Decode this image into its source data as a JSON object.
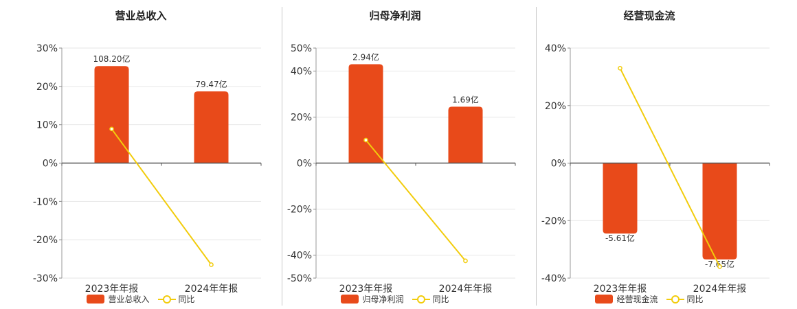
{
  "colors": {
    "bar": "#E84A1A",
    "line": "#F2CC0C"
  },
  "chart_data": [
    {
      "type": "bar",
      "title": "营业总收入",
      "categories": [
        "2023年年报",
        "2024年年报"
      ],
      "series": [
        {
          "name": "营业总收入",
          "kind": "bar",
          "values": [
            25.3,
            18.7
          ],
          "labels": [
            "108.20亿",
            "79.47亿"
          ]
        },
        {
          "name": "同比",
          "kind": "line",
          "values": [
            8.9,
            -26.5
          ]
        }
      ],
      "ylim": [
        -30,
        30
      ],
      "yticks": [
        30,
        20,
        10,
        0,
        -10,
        -20,
        -30
      ],
      "ytick_labels": [
        "30%",
        "20%",
        "10%",
        "0%",
        "-10%",
        "-20%",
        "-30%"
      ],
      "grid": true,
      "legend": "bottom"
    },
    {
      "type": "bar",
      "title": "归母净利润",
      "categories": [
        "2023年年报",
        "2024年年报"
      ],
      "series": [
        {
          "name": "归母净利润",
          "kind": "bar",
          "values": [
            43.0,
            24.5
          ],
          "labels": [
            "2.94亿",
            "1.69亿"
          ]
        },
        {
          "name": "同比",
          "kind": "line",
          "values": [
            10.0,
            -42.5
          ]
        }
      ],
      "ylim": [
        -50,
        50
      ],
      "yticks": [
        50,
        40,
        20,
        0,
        -20,
        -40,
        -50
      ],
      "ytick_labels": [
        "50%",
        "40%",
        "20%",
        "0%",
        "-20%",
        "-40%",
        "-50%"
      ],
      "grid": true,
      "legend": "bottom"
    },
    {
      "type": "bar",
      "title": "经营现金流",
      "categories": [
        "2023年年报",
        "2024年年报"
      ],
      "series": [
        {
          "name": "经营现金流",
          "kind": "bar",
          "values": [
            -24.5,
            -33.5
          ],
          "labels": [
            "-5.61亿",
            "-7.65亿"
          ]
        },
        {
          "name": "同比",
          "kind": "line",
          "values": [
            33.0,
            -36.0
          ]
        }
      ],
      "ylim": [
        -40,
        40
      ],
      "yticks": [
        40,
        20,
        0,
        -20,
        -40
      ],
      "ytick_labels": [
        "40%",
        "20%",
        "0%",
        "-20%",
        "-40%"
      ],
      "grid": true,
      "legend": "bottom"
    }
  ]
}
